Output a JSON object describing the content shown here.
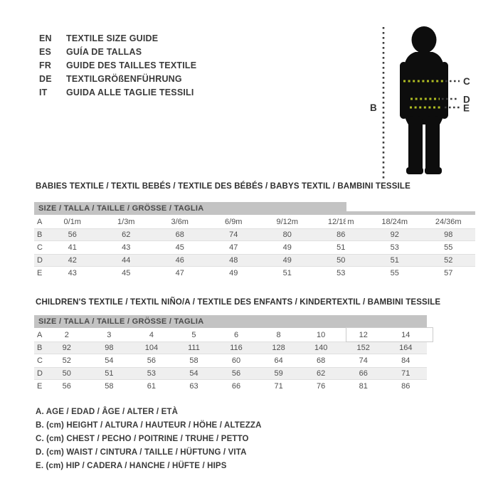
{
  "languages": [
    {
      "code": "EN",
      "title": "TEXTILE SIZE GUIDE"
    },
    {
      "code": "ES",
      "title": "GUÍA DE TALLAS"
    },
    {
      "code": "FR",
      "title": "GUIDE DES TAILLES TEXTILE"
    },
    {
      "code": "DE",
      "title": "TEXTILGRÖßENFÜHRUNG"
    },
    {
      "code": "IT",
      "title": "GUIDA ALLE TAGLIE TESSILI"
    }
  ],
  "figure": {
    "labels": {
      "height": "B",
      "chest": "C",
      "waist": "D",
      "hip": "E"
    }
  },
  "babies_table": {
    "section_title": "BABIES TEXTILE / TEXTIL BEBÉS / TEXTILE DES BÉBÉS / BABYS TEXTIL  / BAMBINI TESSILE",
    "header": "SIZE / TALLA / TAILLE / GRÖSSE / TAGLIA",
    "rows": [
      {
        "label": "A",
        "values": [
          "0/1m",
          "1/3m",
          "3/6m",
          "6/9m",
          "9/12m",
          "12/18m",
          "18/24m",
          "24/36m"
        ]
      },
      {
        "label": "B",
        "values": [
          "56",
          "62",
          "68",
          "74",
          "80",
          "86",
          "92",
          "98"
        ]
      },
      {
        "label": "C",
        "values": [
          "41",
          "43",
          "45",
          "47",
          "49",
          "51",
          "53",
          "55"
        ]
      },
      {
        "label": "D",
        "values": [
          "42",
          "44",
          "46",
          "48",
          "49",
          "50",
          "51",
          "52"
        ]
      },
      {
        "label": "E",
        "values": [
          "43",
          "45",
          "47",
          "49",
          "51",
          "53",
          "55",
          "57"
        ]
      }
    ]
  },
  "children_table": {
    "section_title": "CHILDREN'S TEXTILE / TEXTIL NIÑO/A / TEXTILE DES ENFANTS / KINDERTEXTIL / BAMBINI TESSILE",
    "header": "SIZE / TALLA / TAILLE / GRÖSSE / TAGLIA",
    "rows": [
      {
        "label": "A",
        "values": [
          "2",
          "3",
          "4",
          "5",
          "6",
          "8",
          "10",
          "12",
          "14"
        ]
      },
      {
        "label": "B",
        "values": [
          "92",
          "98",
          "104",
          "111",
          "116",
          "128",
          "140",
          "152",
          "164"
        ]
      },
      {
        "label": "C",
        "values": [
          "52",
          "54",
          "56",
          "58",
          "60",
          "64",
          "68",
          "74",
          "84"
        ]
      },
      {
        "label": "D",
        "values": [
          "50",
          "51",
          "53",
          "54",
          "56",
          "59",
          "62",
          "66",
          "71"
        ]
      },
      {
        "label": "E",
        "values": [
          "56",
          "58",
          "61",
          "63",
          "66",
          "71",
          "76",
          "81",
          "86"
        ]
      }
    ]
  },
  "legend": [
    "A. AGE / EDAD / ÂGE / ALTER / ETÀ",
    "B. (cm) HEIGHT / ALTURA / HAUTEUR / HÖHE / ALTEZZA",
    "C. (cm) CHEST / PECHO / POITRINE / TRUHE / PETTO",
    "D. (cm) WAIST / CINTURA / TAILLE / HÜFTUNG / VITA",
    "E. (cm) HIP / CADERA / HANCHE / HÜFTE / HIPS"
  ],
  "colors": {
    "header_bar": "#c3c3c3",
    "row_stripe": "#efefef",
    "measure_dot_green": "#aebc22",
    "measure_dot_dark": "#3d3d3d",
    "silhouette": "#0d0d0d"
  }
}
